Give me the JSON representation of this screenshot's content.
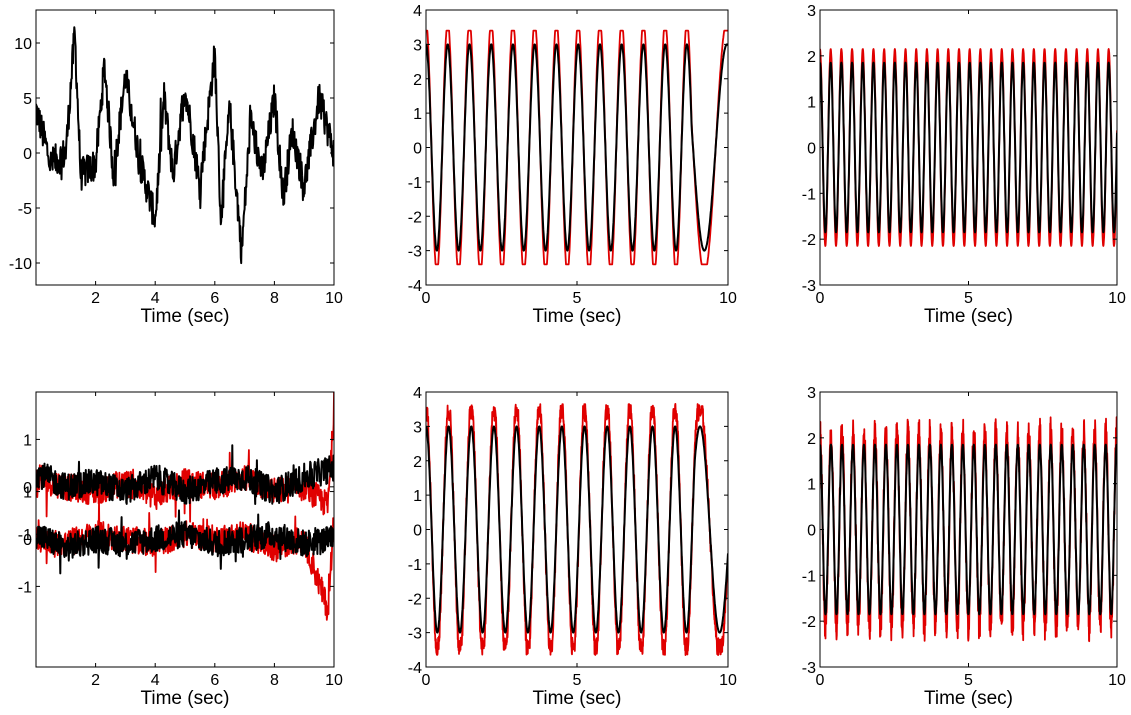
{
  "chart_data": [
    {
      "id": "top-left",
      "type": "line",
      "title": "",
      "xlabel": "Time (sec)",
      "ylabel": "",
      "xlim": [
        0,
        10
      ],
      "ylim": [
        -12,
        13
      ],
      "xticks": [
        2,
        4,
        6,
        8,
        10
      ],
      "yticks": [
        -10,
        -5,
        0,
        5,
        10
      ],
      "series": [
        {
          "color": "#000000",
          "kind": "noisy",
          "x": [
            0,
            0.5,
            1,
            1.3,
            1.5,
            2,
            2.3,
            2.6,
            3,
            3.5,
            4,
            4.3,
            4.6,
            5,
            5.5,
            6,
            6.2,
            6.5,
            6.9,
            7.2,
            7.6,
            8,
            8.3,
            8.6,
            9,
            9.5,
            10
          ],
          "y": [
            4,
            -1,
            0,
            11,
            -2,
            -1,
            8,
            -2,
            7,
            -1,
            -6,
            5,
            -2,
            6,
            -3,
            9,
            -6,
            4,
            -9,
            3,
            -2,
            5,
            -4,
            2,
            -3,
            5,
            0
          ]
        }
      ]
    },
    {
      "id": "top-middle",
      "type": "line",
      "title": "",
      "xlabel": "Time (sec)",
      "ylabel": "",
      "xlim": [
        0,
        10
      ],
      "ylim": [
        -4,
        4
      ],
      "xticks": [
        0,
        5,
        10
      ],
      "yticks": [
        -4,
        -3,
        -2,
        -1,
        0,
        1,
        2,
        3,
        4
      ],
      "series": [
        {
          "color": "#e00000",
          "kind": "sine",
          "amplitude": 3.4,
          "period": 0.72,
          "end_period": 1.5,
          "slow_from": 8.8
        },
        {
          "color": "#000000",
          "kind": "sine",
          "amplitude": 3.0,
          "period": 0.72,
          "end_period": 1.5,
          "slow_from": 8.8
        }
      ]
    },
    {
      "id": "top-right",
      "type": "line",
      "title": "",
      "xlabel": "Time (sec)",
      "ylabel": "",
      "xlim": [
        0,
        10
      ],
      "ylim": [
        -3,
        3
      ],
      "xticks": [
        0,
        5,
        10
      ],
      "yticks": [
        -3,
        -2,
        -1,
        0,
        1,
        2,
        3
      ],
      "series": [
        {
          "color": "#e00000",
          "kind": "sine",
          "amplitude": 2.15,
          "period": 0.36
        },
        {
          "color": "#000000",
          "kind": "sine",
          "amplitude": 1.85,
          "period": 0.36
        }
      ]
    },
    {
      "id": "bottom-left",
      "type": "line",
      "title": "",
      "xlabel": "Time (sec)",
      "ylabel": "",
      "xlim": [
        0,
        10
      ],
      "ylim": [
        -3.3,
        2.5
      ],
      "xticks": [
        2,
        4,
        6,
        8,
        10
      ],
      "yticks": [
        -1,
        0,
        1,
        -1,
        0,
        1
      ],
      "ytick_positions": [
        -1.6,
        -0.6,
        0.4,
        -0.5,
        0.5,
        1.5
      ],
      "series": [
        {
          "color": "#e00000",
          "kind": "noisy",
          "offset": 0.5,
          "x": [
            0,
            1,
            2,
            3,
            4,
            5,
            6,
            7,
            8,
            9,
            9.8,
            10
          ],
          "y": [
            0.2,
            0,
            -0.1,
            0.1,
            -0.2,
            0.1,
            0,
            0.2,
            -0.1,
            0,
            -0.4,
            1.6
          ]
        },
        {
          "color": "#000000",
          "kind": "noisy",
          "offset": 0.5,
          "x": [
            0,
            1,
            2,
            3,
            4,
            5,
            6,
            7,
            8,
            9,
            10
          ],
          "y": [
            0.3,
            0,
            0.1,
            -0.1,
            0.2,
            -0.1,
            0.1,
            0.2,
            -0.1,
            0.2,
            0.4
          ]
        },
        {
          "color": "#e00000",
          "kind": "noisy",
          "offset": -0.6,
          "x": [
            0,
            1,
            2,
            3,
            4,
            5,
            6,
            7,
            8,
            9,
            9.8,
            10
          ],
          "y": [
            0,
            -0.1,
            0.1,
            0,
            -0.1,
            0.1,
            0,
            0.1,
            -0.2,
            0,
            -1.5,
            0.5
          ]
        },
        {
          "color": "#000000",
          "kind": "noisy",
          "offset": -0.6,
          "x": [
            0,
            1,
            2,
            3,
            4,
            5,
            6,
            7,
            8,
            9,
            10
          ],
          "y": [
            0.1,
            -0.2,
            0,
            -0.1,
            0,
            0.1,
            -0.1,
            0,
            0.1,
            -0.1,
            0
          ]
        }
      ]
    },
    {
      "id": "bottom-middle",
      "type": "line",
      "title": "",
      "xlabel": "Time (sec)",
      "ylabel": "",
      "xlim": [
        0,
        10
      ],
      "ylim": [
        -4,
        4
      ],
      "xticks": [
        0,
        5,
        10
      ],
      "yticks": [
        -4,
        -3,
        -2,
        -1,
        0,
        1,
        2,
        3,
        4
      ],
      "series": [
        {
          "color": "#e00000",
          "kind": "sine",
          "amplitude": 3.4,
          "period": 0.75,
          "end_period": 1.3,
          "slow_from": 8.9,
          "jitter": 0.15
        },
        {
          "color": "#000000",
          "kind": "sine",
          "amplitude": 3.0,
          "period": 0.75,
          "end_period": 1.3,
          "slow_from": 8.9
        }
      ]
    },
    {
      "id": "bottom-right",
      "type": "line",
      "title": "",
      "xlabel": "Time (sec)",
      "ylabel": "",
      "xlim": [
        0,
        10
      ],
      "ylim": [
        -3,
        3
      ],
      "xticks": [
        0,
        5,
        10
      ],
      "yticks": [
        -3,
        -2,
        -1,
        0,
        1,
        2,
        3
      ],
      "series": [
        {
          "color": "#e00000",
          "kind": "sine",
          "amplitude": 2.15,
          "period": 0.37,
          "jitter": 0.3
        },
        {
          "color": "#000000",
          "kind": "sine",
          "amplitude": 1.85,
          "period": 0.37
        }
      ]
    }
  ]
}
